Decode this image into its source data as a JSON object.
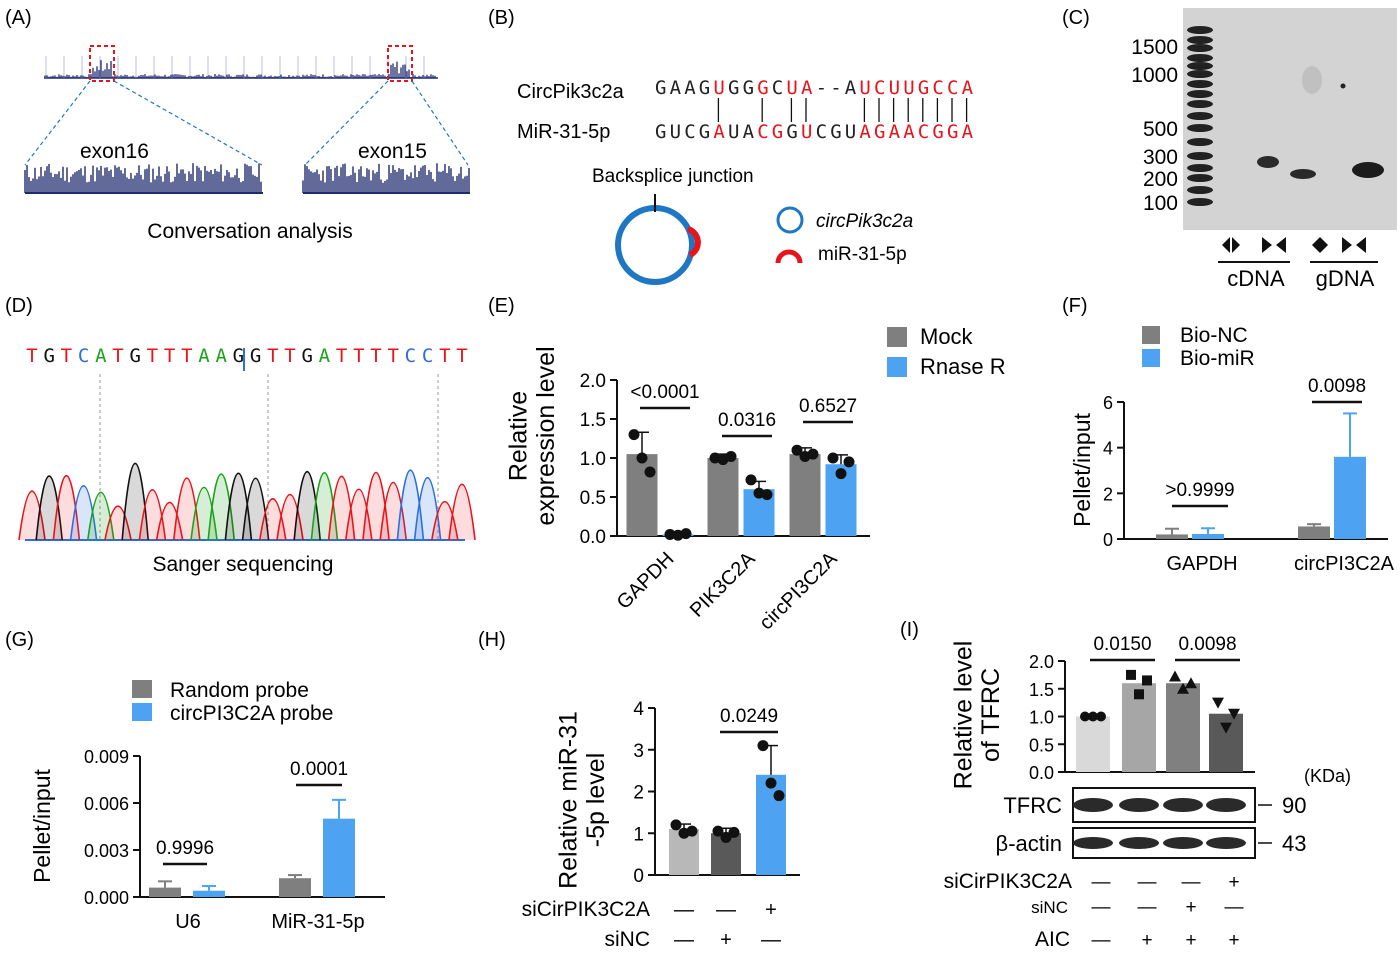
{
  "panels": {
    "A": {
      "label": "(A)",
      "exon_left": "exon16",
      "exon_right": "exon15",
      "caption": "Conversation analysis"
    },
    "B": {
      "label": "(B)",
      "circ_name": "CircPik3c2a",
      "mir_name": "MiR-31-5p",
      "circ_seq": "GAAGUGGGCUA -- AUCUUGCCA",
      "mir_seq": "GUCGAUACGGUCGUAGAACGGA",
      "circ_red_positions": [
        4,
        7,
        9,
        10,
        14,
        15,
        16,
        17,
        18,
        19,
        20,
        21
      ],
      "mir_red_positions": [
        4,
        7,
        8,
        10,
        14,
        15,
        16,
        17,
        18,
        19,
        20,
        21
      ],
      "junction_label": "Backsplice  junction",
      "legend_circ": "circPik3c2a",
      "legend_mir": "miR-31-5p",
      "colors": {
        "circle": "#1f77c4",
        "mir": "#e8141b"
      }
    },
    "C": {
      "label": "(C)",
      "ladder": [
        "1500",
        "1000",
        "500",
        "300",
        "200",
        "100"
      ],
      "groups": [
        "cDNA",
        "gDNA"
      ]
    },
    "D": {
      "label": "(D)",
      "sequence": "TGTCATGTTTAAGGTTGATTTTCCTT",
      "caption": "Sanger sequencing"
    }
  },
  "chart_data": [
    {
      "id": "E",
      "label": "(E)",
      "type": "bar",
      "ylabel": "Relative\nexpression level",
      "ylim": [
        0,
        2.0
      ],
      "yticks": [
        "0.0",
        "0.5",
        "1.0",
        "1.5",
        "2.0"
      ],
      "categories": [
        "GAPDH",
        "PIK3C2A",
        "circPI3C2A"
      ],
      "series": [
        {
          "name": "Mock",
          "color": "#7f7f7f",
          "values": [
            1.05,
            1.0,
            1.05
          ],
          "err": [
            0.28,
            0.05,
            0.08
          ],
          "points": [
            [
              1.3,
              1.0,
              0.82
            ],
            [
              1.0,
              0.98,
              1.02
            ],
            [
              1.1,
              1.02,
              1.05
            ]
          ]
        },
        {
          "name": "Rnase R",
          "color": "#4da3f2",
          "values": [
            0.02,
            0.6,
            0.92
          ],
          "err": [
            0.01,
            0.1,
            0.12
          ],
          "points": [
            [
              0.02,
              0.01,
              0.03
            ],
            [
              0.72,
              0.55,
              0.53
            ],
            [
              1.0,
              0.8,
              0.95
            ]
          ]
        }
      ],
      "pvalues": [
        "<0.0001",
        "0.0316",
        "0.6527"
      ]
    },
    {
      "id": "F",
      "label": "(F)",
      "type": "bar",
      "ylabel": "Pellet/input",
      "ylim": [
        0,
        6
      ],
      "yticks": [
        "0",
        "2",
        "4",
        "6"
      ],
      "categories": [
        "GAPDH",
        "circPI3C2A"
      ],
      "series": [
        {
          "name": "Bio-NC",
          "color": "#7f7f7f",
          "values": [
            0.2,
            0.55
          ],
          "err": [
            0.25,
            0.1
          ]
        },
        {
          "name": "Bio-miR",
          "color": "#4da3f2",
          "values": [
            0.22,
            3.6
          ],
          "err": [
            0.25,
            1.9
          ]
        }
      ],
      "pvalues": [
        ">0.9999",
        "0.0098"
      ]
    },
    {
      "id": "G",
      "label": "(G)",
      "type": "bar",
      "ylabel": "Pellet/input",
      "ylim": [
        0,
        0.009
      ],
      "yticks": [
        "0.000",
        "0.003",
        "0.006",
        "0.009"
      ],
      "categories": [
        "U6",
        "MiR-31-5p"
      ],
      "series": [
        {
          "name": "Random  probe",
          "color": "#7f7f7f",
          "values": [
            0.0006,
            0.0012
          ],
          "err": [
            0.0004,
            0.0002
          ]
        },
        {
          "name": "circPI3C2A probe",
          "color": "#4da3f2",
          "values": [
            0.0004,
            0.005
          ],
          "err": [
            0.0003,
            0.0012
          ]
        }
      ],
      "pvalues": [
        "0.9996",
        "0.0001"
      ]
    },
    {
      "id": "H",
      "label": "(H)",
      "type": "bar",
      "ylabel": "Relative miR-31\n-5p level",
      "ylim": [
        0,
        4
      ],
      "yticks": [
        "0",
        "1",
        "2",
        "3",
        "4"
      ],
      "bars": [
        {
          "value": 1.1,
          "err": 0.12,
          "color": "#b8b8b8",
          "points": [
            1.2,
            1.0,
            1.05
          ]
        },
        {
          "value": 1.0,
          "err": 0.12,
          "color": "#595959",
          "points": [
            1.05,
            0.9,
            1.02
          ]
        },
        {
          "value": 2.4,
          "err": 0.7,
          "color": "#4da3f2",
          "points": [
            3.1,
            2.2,
            1.9
          ]
        }
      ],
      "pvalues": [
        "0.0249"
      ],
      "condition_rows": [
        {
          "name": "siCirPIK3C2A",
          "signs": [
            "—",
            "—",
            "+"
          ]
        },
        {
          "name": "siNC",
          "signs": [
            "—",
            "+",
            "—"
          ]
        }
      ]
    },
    {
      "id": "I",
      "label": "(I)",
      "type": "bar",
      "ylabel": "Relative level\nof TFRC",
      "ylim": [
        0,
        2.0
      ],
      "yticks": [
        "0.0",
        "0.5",
        "1.0",
        "1.5",
        "2.0"
      ],
      "bars": [
        {
          "value": 1.0,
          "color": "#d9d9d9",
          "points": [
            1.0,
            1.0,
            1.0
          ],
          "marker": "circle"
        },
        {
          "value": 1.6,
          "color": "#a6a6a6",
          "points": [
            1.75,
            1.4,
            1.65
          ],
          "marker": "square"
        },
        {
          "value": 1.6,
          "color": "#808080",
          "points": [
            1.72,
            1.5,
            1.6
          ],
          "marker": "triangle"
        },
        {
          "value": 1.05,
          "color": "#595959",
          "points": [
            1.25,
            0.8,
            1.05
          ],
          "marker": "triangle-down"
        }
      ],
      "pvalues": [
        "0.0150",
        "0.0098"
      ],
      "kda_label": "(KDa)",
      "blots": [
        {
          "name": "TFRC",
          "kda": "90"
        },
        {
          "name": "β-actin",
          "kda": "43"
        }
      ],
      "condition_rows": [
        {
          "name": "siCirPIK3C2A",
          "signs": [
            "—",
            "—",
            "—",
            "+"
          ]
        },
        {
          "name": "siNC",
          "signs": [
            "—",
            "—",
            "+",
            "—"
          ]
        },
        {
          "name": "AIC",
          "signs": [
            "—",
            "+",
            "+",
            "+"
          ]
        }
      ]
    }
  ]
}
